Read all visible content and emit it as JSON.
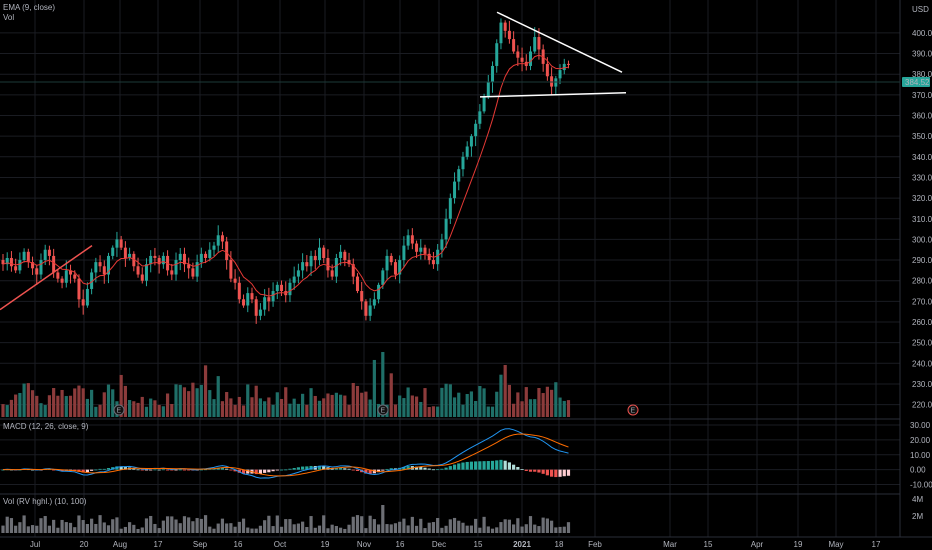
{
  "price_pane": {
    "ema_label": "EMA (9, close)",
    "vol_label": "Vol",
    "currency": "USD",
    "last_price": "384.52"
  },
  "macd_pane": {
    "label": "MACD (12, 26, close, 9)"
  },
  "vol_hv_pane": {
    "label": "Vol (RV hghl.) (10, 100)"
  },
  "earnings_markers": [
    "E",
    "E",
    "E"
  ],
  "colors": {
    "up": "#26a69a",
    "down": "#ef5350",
    "vol_up": "#1f6f68",
    "vol_down": "#8c3b3b",
    "ema": "#e53935",
    "macd": "#2196f3",
    "signal": "#ff6d00",
    "hist_pos": "#26a69a",
    "hist_neg": "#ef5350",
    "trendline": "#ffffff"
  },
  "chart_data": {
    "type": "candlestick",
    "x_tick_labels": [
      "Jul",
      "20",
      "Aug",
      "17",
      "Sep",
      "16",
      "Oct",
      "19",
      "Nov",
      "16",
      "Dec",
      "15",
      "2021",
      "18",
      "Feb",
      "Mar",
      "15",
      "Apr",
      "19",
      "May",
      "17"
    ],
    "price_axis": {
      "ticks": [
        400,
        390,
        380,
        370,
        360,
        350,
        340,
        330,
        320,
        310,
        300,
        290,
        280,
        270,
        260,
        250,
        240,
        230,
        220
      ],
      "range": [
        214,
        414
      ]
    },
    "macd_axis": {
      "ticks": [
        "30.00",
        "20.00",
        "10.00",
        "0.00",
        "-10.00"
      ],
      "range": [
        -15,
        32
      ]
    },
    "vol_hv_axis": {
      "ticks": [
        "4M",
        "2M"
      ]
    },
    "candles_close": [
      288,
      291,
      287,
      285,
      290,
      294,
      289,
      286,
      283,
      290,
      295,
      292,
      284,
      281,
      279,
      285,
      283,
      281,
      271,
      268,
      276,
      284,
      289,
      287,
      283,
      292,
      296,
      300,
      296,
      291,
      293,
      287,
      283,
      280,
      288,
      292,
      291,
      288,
      292,
      285,
      283,
      290,
      293,
      288,
      286,
      282,
      289,
      293,
      291,
      295,
      297,
      302,
      299,
      290,
      281,
      279,
      271,
      268,
      274,
      271,
      263,
      266,
      272,
      270,
      275,
      278,
      275,
      273,
      279,
      282,
      285,
      289,
      287,
      292,
      290,
      296,
      291,
      285,
      282,
      291,
      294,
      290,
      288,
      282,
      275,
      270,
      263,
      268,
      271,
      278,
      285,
      292,
      289,
      283,
      290,
      297,
      302,
      298,
      294,
      296,
      293,
      290,
      288,
      295,
      300,
      310,
      320,
      328,
      334,
      340,
      345,
      350,
      356,
      362,
      369,
      376,
      384,
      395,
      405,
      401,
      397,
      391,
      388,
      386,
      384,
      391,
      398,
      392,
      385,
      379,
      374,
      378,
      382,
      385,
      384.52
    ],
    "trendlines": [
      {
        "from": [
          -0.5,
          403
        ],
        "to": [
          9,
          392
        ],
        "anchor": "upper"
      },
      {
        "from": [
          -0.5,
          378
        ],
        "to": [
          9,
          378
        ],
        "anchor": "lower"
      }
    ]
  }
}
